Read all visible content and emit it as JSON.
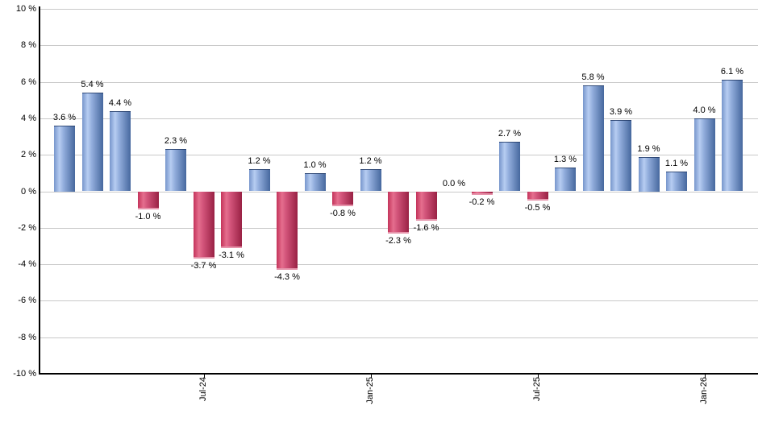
{
  "chart_data": {
    "type": "bar",
    "title": "",
    "xlabel": "",
    "ylabel": "",
    "ylim": [
      -10,
      10
    ],
    "grid": true,
    "legend_position": "none",
    "values": [
      3.6,
      5.4,
      4.4,
      -1.0,
      2.3,
      -3.7,
      -3.1,
      1.2,
      -4.3,
      1.0,
      -0.8,
      1.2,
      -2.3,
      -1.6,
      0.0,
      -0.2,
      2.7,
      -0.5,
      1.3,
      5.8,
      3.9,
      1.9,
      1.1,
      4.0,
      6.1
    ],
    "bar_value_labels": [
      "3.6 %",
      "5.4 %",
      "4.4 %",
      "-1.0 %",
      "2.3 %",
      "-3.7 %",
      "-3.1 %",
      "1.2 %",
      "-4.3 %",
      "1.0 %",
      "-0.8 %",
      "1.2 %",
      "-2.3 %",
      "-1.6 %",
      "0.0 %",
      "-0.2 %",
      "2.7 %",
      "-0.5 %",
      "1.3 %",
      "5.8 %",
      "3.9 %",
      "1.9 %",
      "1.1 %",
      "4.0 %",
      "6.1 %"
    ],
    "x_ticks": [
      {
        "label": "Jul-24",
        "bar_index": 5
      },
      {
        "label": "Jan-25",
        "bar_index": 11
      },
      {
        "label": "Jul-25",
        "bar_index": 17
      },
      {
        "label": "Jan-26",
        "bar_index": 23
      }
    ],
    "y_ticks": [
      {
        "value": 10,
        "label": "10 %"
      },
      {
        "value": 8,
        "label": "8 %"
      },
      {
        "value": 6,
        "label": "6 %"
      },
      {
        "value": 4,
        "label": "4 %"
      },
      {
        "value": 2,
        "label": "2 %"
      },
      {
        "value": 0,
        "label": "0 %"
      },
      {
        "value": -2,
        "label": "-2 %"
      },
      {
        "value": -4,
        "label": "-4 %"
      },
      {
        "value": -6,
        "label": "-6 %"
      },
      {
        "value": -8,
        "label": "-8 %"
      },
      {
        "value": -10,
        "label": "-10 %"
      }
    ],
    "colors": {
      "positive_edge_left": "#7796cb",
      "positive_highlight": "#b7cdf2",
      "positive_mid": "#93aedd",
      "positive_edge_right": "#46689e",
      "negative_edge_left": "#c3335a",
      "negative_highlight": "#e56e8e",
      "negative_mid": "#d2547a",
      "negative_edge_right": "#992144",
      "gridline": "#c9c9c9",
      "axis": "#000000",
      "label_text": "#000000",
      "background": "#ffffff"
    }
  }
}
